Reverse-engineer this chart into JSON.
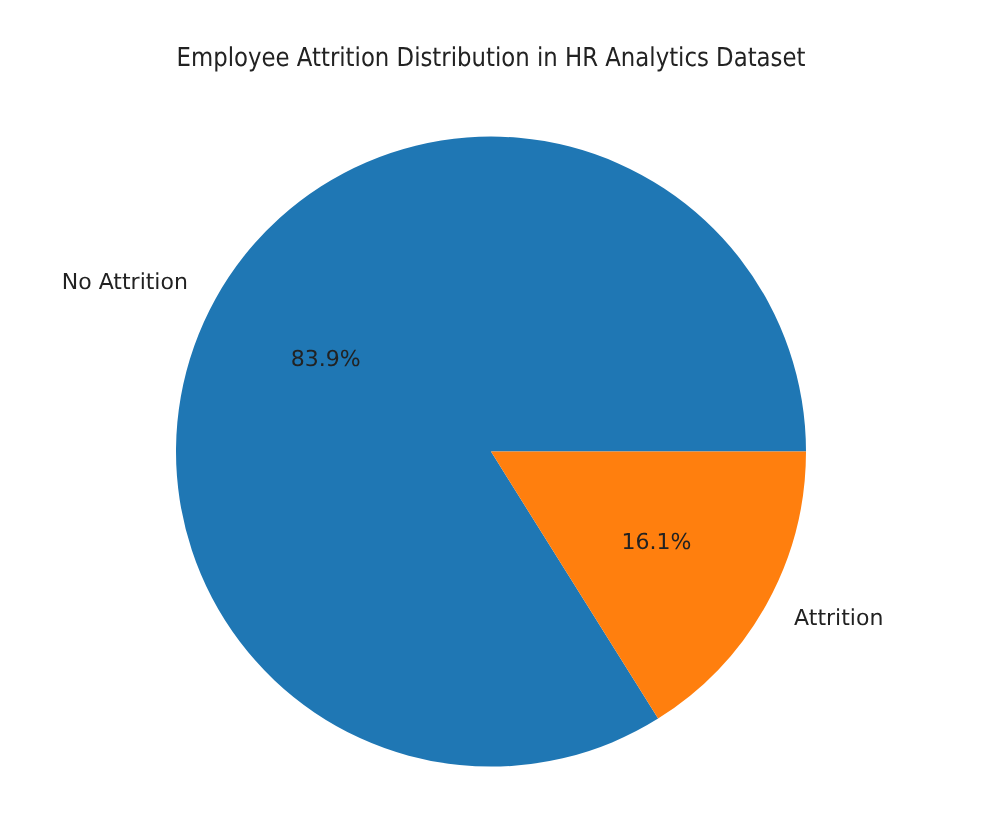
{
  "chart_data": {
    "type": "pie",
    "title": "Employee Attrition Distribution in HR Analytics Dataset",
    "categories": [
      "No Attrition",
      "Attrition"
    ],
    "values": [
      83.9,
      16.1
    ],
    "value_labels": [
      "83.9%",
      "16.1%"
    ],
    "colors": [
      "#1f77b4",
      "#ff7f0e"
    ],
    "legend": false
  }
}
